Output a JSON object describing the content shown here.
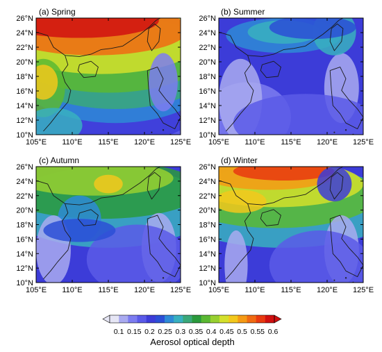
{
  "lat_ticks": [
    "26°N",
    "24°N",
    "22°N",
    "20°N",
    "18°N",
    "16°N",
    "14°N",
    "12°N",
    "10°N"
  ],
  "lon_ticks": [
    "105°E",
    "110°E",
    "115°E",
    "120°E",
    "125°E"
  ],
  "panels": [
    {
      "id": "spring",
      "title": "(a) Spring",
      "regime": "spring"
    },
    {
      "id": "summer",
      "title": "(b) Summer",
      "regime": "summer"
    },
    {
      "id": "autumn",
      "title": "(c) Autumn",
      "regime": "autumn"
    },
    {
      "id": "winter",
      "title": "(d) Winter",
      "regime": "winter"
    }
  ],
  "colorbar": {
    "title": "Aerosol optical depth",
    "tick_labels": [
      "0.1",
      "0.15",
      "0.2",
      "0.25",
      "0.3",
      "0.35",
      "0.4",
      "0.45",
      "0.5",
      "0.55",
      "0.6"
    ],
    "colors": [
      "#e6e6f5",
      "#a9aaf0",
      "#7c7cf0",
      "#5a5ae8",
      "#3c3cd8",
      "#2b4fd6",
      "#2e8ad6",
      "#38b0c0",
      "#3aa87a",
      "#2a9a3c",
      "#5ab832",
      "#98d030",
      "#d4e02c",
      "#f2c81c",
      "#f59a14",
      "#f06a12",
      "#e83a10",
      "#d01010"
    ]
  }
}
